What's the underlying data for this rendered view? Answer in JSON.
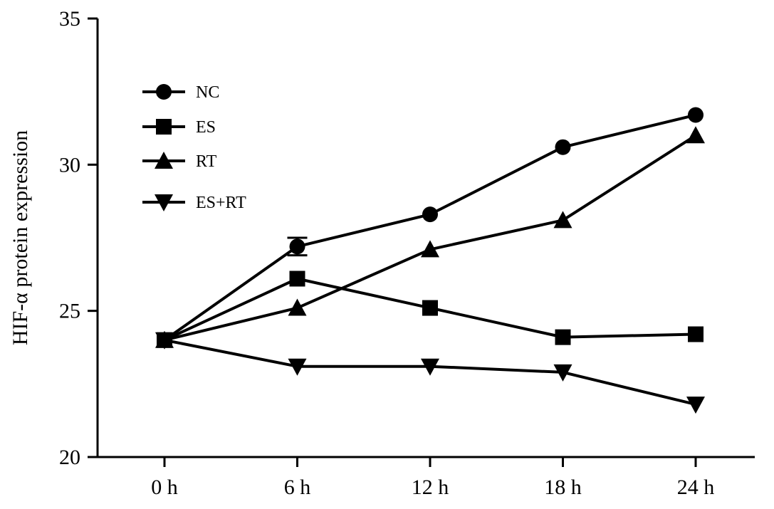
{
  "chart_data": {
    "type": "line",
    "title": "",
    "xlabel": "",
    "ylabel": "HIF-α protein expression",
    "categories": [
      "0 h",
      "6 h",
      "12 h",
      "18 h",
      "24 h"
    ],
    "ylim": [
      20,
      35
    ],
    "yticks": [
      "20",
      "25",
      "30",
      "35"
    ],
    "grid": false,
    "legend_position": "top-left",
    "series": [
      {
        "name": "NC",
        "marker": "circle",
        "values": [
          24.0,
          27.2,
          28.3,
          30.6,
          31.7
        ],
        "error": [
          0,
          0.3,
          0,
          0,
          0
        ]
      },
      {
        "name": "ES",
        "marker": "square",
        "values": [
          24.0,
          26.1,
          25.1,
          24.1,
          24.2
        ],
        "error": [
          0,
          0,
          0,
          0,
          0
        ]
      },
      {
        "name": "RT",
        "marker": "triangle-up",
        "values": [
          24.0,
          25.1,
          27.1,
          28.1,
          31.0
        ],
        "error": [
          0,
          0,
          0,
          0,
          0
        ]
      },
      {
        "name": "ES+RT",
        "marker": "triangle-down",
        "values": [
          24.0,
          23.1,
          23.1,
          22.9,
          21.8
        ],
        "error": [
          0,
          0,
          0,
          0,
          0
        ]
      }
    ],
    "colors": {
      "line": "#000000",
      "marker": "#000000",
      "background": "#ffffff"
    }
  }
}
